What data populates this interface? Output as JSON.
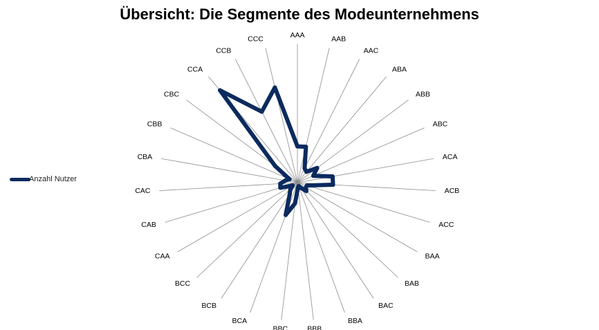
{
  "chart_data": {
    "type": "radar",
    "title": "Übersicht: Die Segmente des Modeunternehmens",
    "categories": [
      "AAA",
      "AAB",
      "AAC",
      "ABA",
      "ABB",
      "ABC",
      "ACA",
      "ACB",
      "ACC",
      "BAA",
      "BAB",
      "BAC",
      "BBA",
      "BBB",
      "BBC",
      "BCA",
      "BCB",
      "BCC",
      "CAA",
      "CAB",
      "CAC",
      "CBA",
      "CBB",
      "CBC",
      "CCA",
      "CCB",
      "CCC"
    ],
    "series": [
      {
        "name": "Anzahl Nutzer",
        "color": "#0b2a5e",
        "values": [
          59,
          60,
          26,
          23,
          40,
          28,
          58,
          58,
          16,
          16,
          20,
          10,
          6,
          8,
          34,
          56,
          23,
          16,
          9,
          29,
          28,
          20,
          14,
          45,
          196,
          129,
          159
        ]
      }
    ],
    "rmax": 225,
    "grid": "spokes",
    "legend": "left"
  }
}
